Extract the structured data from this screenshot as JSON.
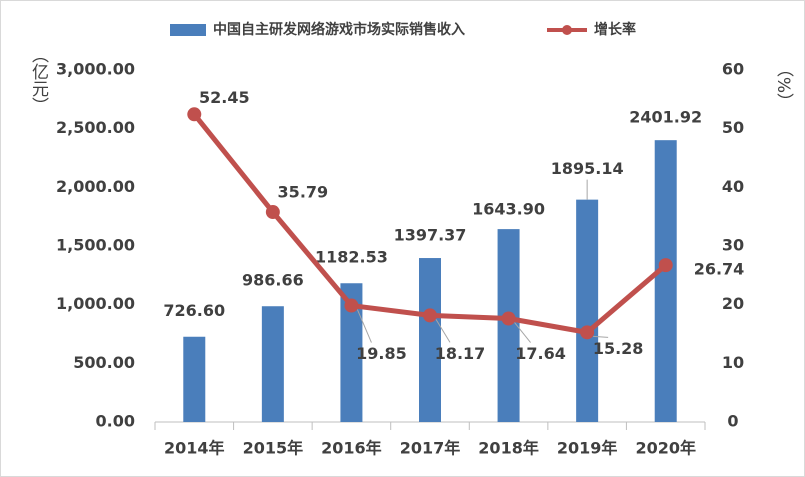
{
  "chart_data": {
    "type": "bar-line",
    "categories": [
      "2014年",
      "2015年",
      "2016年",
      "2017年",
      "2018年",
      "2019年",
      "2020年"
    ],
    "series": [
      {
        "name": "中国自主研发网络游戏市场实际销售收入",
        "type": "bar",
        "color": "#4a7ebb",
        "values": [
          726.6,
          986.66,
          1182.53,
          1397.37,
          1643.9,
          1895.14,
          2401.92
        ],
        "value_labels": [
          "726.60",
          "986.66",
          "1182.53",
          "1397.37",
          "1643.90",
          "1895.14",
          "2401.92"
        ]
      },
      {
        "name": "增长率",
        "type": "line",
        "color": "#c0504d",
        "axis": "y2",
        "values": [
          52.45,
          35.79,
          19.85,
          18.17,
          17.64,
          15.28,
          26.74
        ]
      }
    ],
    "ylabel": "（亿元）",
    "y2label": "（%）",
    "ylim": [
      0,
      3000
    ],
    "yticks": [
      {
        "value": 0,
        "label": "0.00"
      },
      {
        "value": 500,
        "label": "500.00"
      },
      {
        "value": 1000,
        "label": "1,000.00"
      },
      {
        "value": 1500,
        "label": "1,500.00"
      },
      {
        "value": 2000,
        "label": "2,000.00"
      },
      {
        "value": 2500,
        "label": "2,500.00"
      },
      {
        "value": 3000,
        "label": "3,000.00"
      }
    ],
    "y2lim": [
      0,
      60
    ],
    "y2ticks": [
      0,
      10,
      20,
      30,
      40,
      50,
      60
    ],
    "legend": "top"
  }
}
